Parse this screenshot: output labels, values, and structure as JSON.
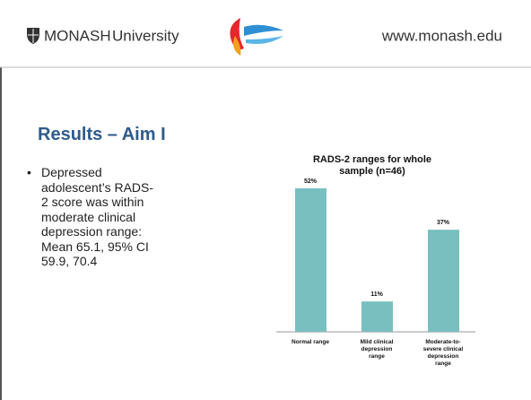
{
  "header": {
    "brand": "MONASH",
    "brand_suffix": "University",
    "url": "www.monash.edu"
  },
  "title": "Results – Aim I",
  "bullets": [
    "Depressed adolescent’s RADS-2 score was within moderate clinical depression range: Mean 65.1, 95% CI 59.9, 70.4"
  ],
  "chart_data": {
    "type": "bar",
    "title": "RADS-2 ranges for whole sample (n=46)",
    "categories": [
      "Normal range",
      "Mild clinical depression range",
      "Moderate-to-severe clinical depression range"
    ],
    "values": [
      52,
      11,
      37
    ],
    "value_labels": [
      "52%",
      "11%",
      "37%"
    ],
    "color": "#79bfbf"
  }
}
